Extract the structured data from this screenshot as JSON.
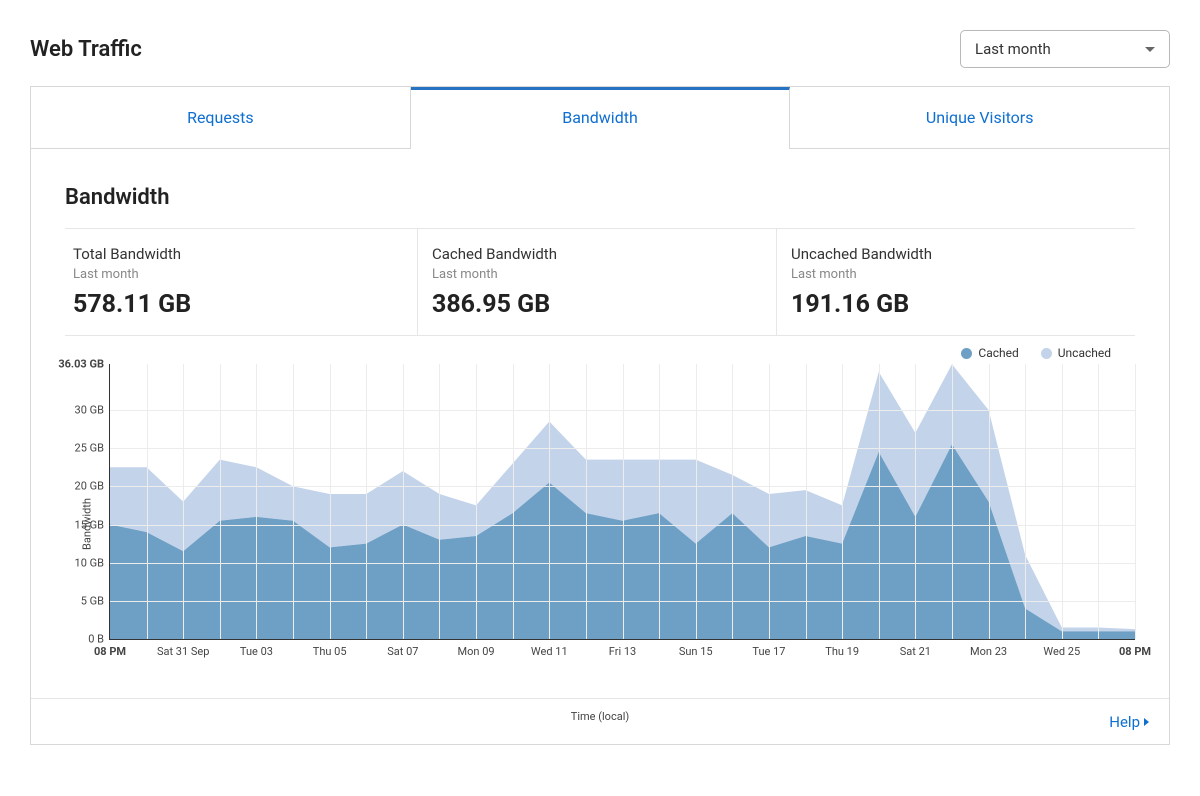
{
  "title": "Web Traffic",
  "period_select": {
    "value": "Last month"
  },
  "tabs": [
    {
      "label": "Requests",
      "active": false
    },
    {
      "label": "Bandwidth",
      "active": true
    },
    {
      "label": "Unique Visitors",
      "active": false
    }
  ],
  "section_title": "Bandwidth",
  "stats": [
    {
      "label": "Total Bandwidth",
      "sub": "Last month",
      "value": "578.11 GB"
    },
    {
      "label": "Cached Bandwidth",
      "sub": "Last month",
      "value": "386.95 GB"
    },
    {
      "label": "Uncached Bandwidth",
      "sub": "Last month",
      "value": "191.16 GB"
    }
  ],
  "legend": [
    {
      "label": "Cached",
      "color": "#6e9fc5"
    },
    {
      "label": "Uncached",
      "color": "#c3d3ea"
    }
  ],
  "chart": {
    "type": "area-stacked",
    "ylabel": "Bandwidth",
    "xlabel": "Time (local)",
    "ymax": 36.03,
    "yticks": [
      {
        "v": 0,
        "label": "0 B"
      },
      {
        "v": 5,
        "label": "5 GB"
      },
      {
        "v": 10,
        "label": "10 GB"
      },
      {
        "v": 15,
        "label": "15 GB"
      },
      {
        "v": 20,
        "label": "20 GB"
      },
      {
        "v": 25,
        "label": "25 GB"
      },
      {
        "v": 30,
        "label": "30 GB"
      },
      {
        "v": 36.03,
        "label": "36.03 GB",
        "bold": true
      }
    ],
    "xticks": [
      {
        "i": 0,
        "label": "08 PM",
        "bold": true
      },
      {
        "i": 2,
        "label": "Sat 31 Sep"
      },
      {
        "i": 4,
        "label": "Tue 03"
      },
      {
        "i": 6,
        "label": "Thu 05"
      },
      {
        "i": 8,
        "label": "Sat 07"
      },
      {
        "i": 10,
        "label": "Mon 09"
      },
      {
        "i": 12,
        "label": "Wed 11"
      },
      {
        "i": 14,
        "label": "Fri 13"
      },
      {
        "i": 16,
        "label": "Sun 15"
      },
      {
        "i": 18,
        "label": "Tue 17"
      },
      {
        "i": 20,
        "label": "Thu 19"
      },
      {
        "i": 22,
        "label": "Sat 21"
      },
      {
        "i": 24,
        "label": "Mon 23"
      },
      {
        "i": 26,
        "label": "Wed 25"
      },
      {
        "i": 28,
        "label": "08 PM",
        "bold": true
      }
    ],
    "n_points": 29,
    "cached": [
      15.0,
      14.0,
      11.5,
      15.5,
      16.0,
      15.5,
      12.0,
      12.5,
      15.0,
      13.0,
      13.5,
      16.5,
      20.5,
      16.5,
      15.5,
      16.5,
      12.5,
      16.5,
      12.0,
      13.5,
      12.5,
      24.5,
      16.0,
      25.5,
      18,
      4.0,
      1.0,
      1.0,
      1.0
    ],
    "uncached": [
      7.5,
      8.5,
      6.5,
      8.0,
      6.5,
      4.5,
      7.0,
      6.5,
      7.0,
      6.0,
      4.0,
      6.5,
      8.0,
      7.0,
      8.0,
      7.0,
      11.0,
      5.0,
      7.0,
      6.0,
      5.0,
      10.5,
      11.0,
      10.5,
      12,
      7,
      0.5,
      0.5,
      0.3
    ],
    "colors": {
      "cached_fill": "#6e9fc5",
      "uncached_fill": "#c3d3ea",
      "grid": "#ececec",
      "axis": "#333333"
    },
    "grid_vertical_step": 1
  },
  "footer": {
    "help_label": "Help"
  }
}
